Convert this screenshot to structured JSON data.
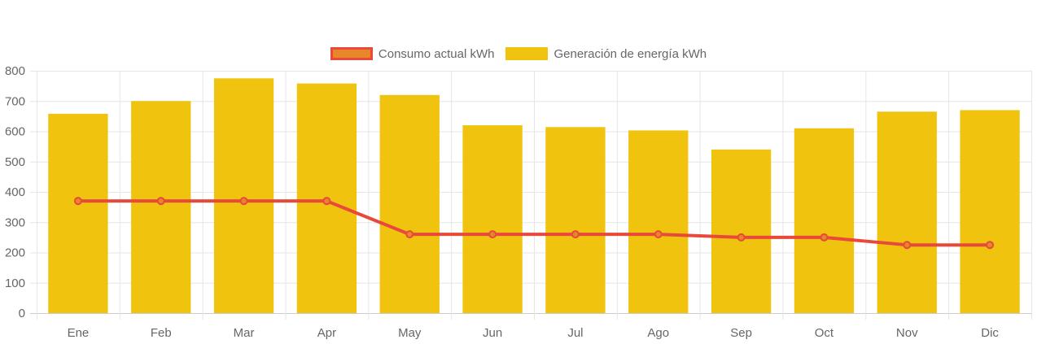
{
  "chart_data": {
    "type": "bar",
    "categories": [
      "Ene",
      "Feb",
      "Mar",
      "Apr",
      "May",
      "Jun",
      "Jul",
      "Ago",
      "Sep",
      "Oct",
      "Nov",
      "Dic"
    ],
    "series": [
      {
        "name": "Consumo actual kWh",
        "type": "line",
        "values": [
          370,
          370,
          370,
          370,
          260,
          260,
          260,
          260,
          250,
          250,
          225,
          225
        ]
      },
      {
        "name": "Generación de energía kWh",
        "type": "bar",
        "values": [
          658,
          700,
          775,
          758,
          720,
          620,
          614,
          603,
          540,
          610,
          665,
          670
        ]
      }
    ],
    "title": "",
    "xlabel": "",
    "ylabel": "",
    "ylim": [
      0,
      800
    ],
    "yticks": [
      0,
      100,
      200,
      300,
      400,
      500,
      600,
      700,
      800
    ],
    "grid": true,
    "legend_position": "top-center"
  },
  "colors": {
    "bar": "#f0c30f",
    "line": "#e8493b",
    "point_fill": "#e8862a",
    "grid": "#e6e6e6",
    "axis_text": "#666666"
  }
}
